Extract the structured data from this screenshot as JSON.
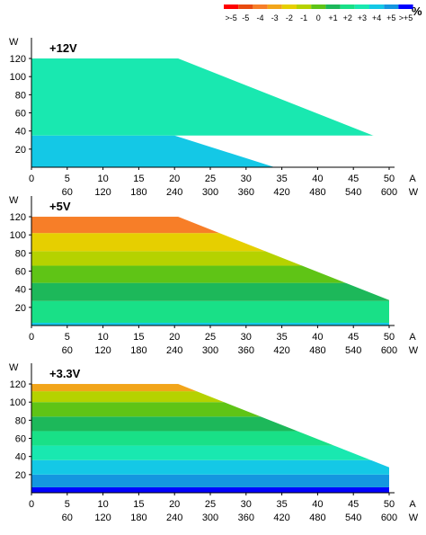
{
  "legend": {
    "unit": "%",
    "labels": [
      ">-5",
      "-5",
      "-4",
      "-3",
      "-2",
      "-1",
      "0",
      "+1",
      "+2",
      "+3",
      "+4",
      "+5",
      ">+5"
    ],
    "colors": [
      "#ff0000",
      "#e84a0f",
      "#f77e28",
      "#f2a51a",
      "#e6cf00",
      "#b5d200",
      "#5fc416",
      "#1db85a",
      "#19e087",
      "#19e8b0",
      "#14c8e6",
      "#1496e0",
      "#0000ff"
    ]
  },
  "chart_data": [
    {
      "type": "heatmap",
      "title": "+12V",
      "xlabel": "A",
      "x2label": "W",
      "ylabel": "W",
      "x_ticks": [
        0,
        5,
        10,
        15,
        20,
        25,
        30,
        35,
        40,
        45,
        50
      ],
      "x2_ticks": [
        60,
        120,
        180,
        240,
        300,
        360,
        420,
        480,
        540,
        600
      ],
      "y_ticks": [
        20,
        40,
        60,
        80,
        100,
        120
      ],
      "xlim": [
        0,
        50
      ],
      "ylim": [
        0,
        125
      ],
      "max_power_curve": [
        [
          0,
          120
        ],
        [
          20.5,
          120
        ],
        [
          50,
          28
        ]
      ],
      "bands": [
        {
          "y_from": 0,
          "y_to": 35,
          "shrink_from": 20,
          "shrink_to": 34,
          "color": "#14c8e6"
        },
        {
          "y_from": 35,
          "y_to": 120,
          "color": "#19e8b0"
        }
      ]
    },
    {
      "type": "heatmap",
      "title": "+5V",
      "xlabel": "A",
      "x2label": "W",
      "ylabel": "W",
      "x_ticks": [
        0,
        5,
        10,
        15,
        20,
        25,
        30,
        35,
        40,
        45,
        50
      ],
      "x2_ticks": [
        60,
        120,
        180,
        240,
        300,
        360,
        420,
        480,
        540,
        600
      ],
      "y_ticks": [
        20,
        40,
        60,
        80,
        100,
        120
      ],
      "xlim": [
        0,
        50
      ],
      "ylim": [
        0,
        125
      ],
      "max_power_curve": [
        [
          0,
          120
        ],
        [
          20.5,
          120
        ],
        [
          50,
          28
        ]
      ],
      "bands": [
        {
          "y_from": 0,
          "y_to": 3,
          "color": "#14c8e6"
        },
        {
          "y_from": 3,
          "y_to": 27,
          "color": "#19e087"
        },
        {
          "y_from": 27,
          "y_to": 47,
          "color": "#1db85a"
        },
        {
          "y_from": 47,
          "y_to": 66,
          "color": "#5fc416"
        },
        {
          "y_from": 66,
          "y_to": 82,
          "color": "#b5d200"
        },
        {
          "y_from": 82,
          "y_to": 102,
          "color": "#e6cf00"
        },
        {
          "y_from": 102,
          "y_to": 120,
          "color": "#f77e28"
        }
      ]
    },
    {
      "type": "heatmap",
      "title": "+3.3V",
      "xlabel": "A",
      "x2label": "W",
      "ylabel": "W",
      "x_ticks": [
        0,
        5,
        10,
        15,
        20,
        25,
        30,
        35,
        40,
        45,
        50
      ],
      "x2_ticks": [
        60,
        120,
        180,
        240,
        300,
        360,
        420,
        480,
        540,
        600
      ],
      "y_ticks": [
        20,
        40,
        60,
        80,
        100,
        120
      ],
      "xlim": [
        0,
        50
      ],
      "ylim": [
        0,
        125
      ],
      "max_power_curve": [
        [
          0,
          120
        ],
        [
          20.5,
          120
        ],
        [
          50,
          28
        ]
      ],
      "bands": [
        {
          "y_from": 0,
          "y_to": 6,
          "color": "#0000ff"
        },
        {
          "y_from": 6,
          "y_to": 20,
          "color": "#1496e0"
        },
        {
          "y_from": 20,
          "y_to": 36,
          "color": "#14c8e6"
        },
        {
          "y_from": 36,
          "y_to": 52,
          "color": "#19e8b0"
        },
        {
          "y_from": 52,
          "y_to": 68,
          "color": "#19e087"
        },
        {
          "y_from": 68,
          "y_to": 84,
          "color": "#1db85a"
        },
        {
          "y_from": 84,
          "y_to": 100,
          "color": "#5fc416"
        },
        {
          "y_from": 100,
          "y_to": 112,
          "color": "#b5d200"
        },
        {
          "y_from": 112,
          "y_to": 120,
          "color": "#f2a51a"
        }
      ]
    }
  ]
}
